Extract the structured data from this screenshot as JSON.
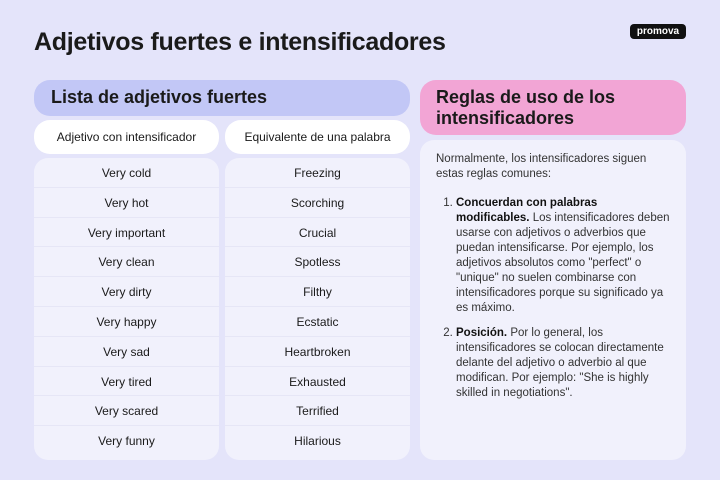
{
  "title": "Adjetivos fuertes e intensificadores",
  "logo": "promova",
  "left": {
    "header": "Lista de adjetivos fuertes",
    "columns": [
      "Adjetivo con intensificador",
      "Equivalente de una palabra"
    ],
    "rows": [
      [
        "Very cold",
        "Freezing"
      ],
      [
        "Very hot",
        "Scorching"
      ],
      [
        "Very important",
        "Crucial"
      ],
      [
        "Very clean",
        "Spotless"
      ],
      [
        "Very dirty",
        "Filthy"
      ],
      [
        "Very happy",
        "Ecstatic"
      ],
      [
        "Very sad",
        "Heartbroken"
      ],
      [
        "Very tired",
        "Exhausted"
      ],
      [
        "Very scared",
        "Terrified"
      ],
      [
        "Very funny",
        "Hilarious"
      ]
    ]
  },
  "right": {
    "header": "Reglas de uso de los intensificadores",
    "intro": "Normalmente, los intensificadores siguen estas reglas comunes:",
    "rules": [
      {
        "bold": "Concuerdan con palabras modificables.",
        "text": " Los intensificadores deben usarse con adjetivos o adverbios que puedan intensificarse. Por ejemplo, los adjetivos absolutos como \"perfect\" o \"unique\" no suelen combinarse con intensificadores porque su significado ya es máximo."
      },
      {
        "bold": "Posición.",
        "text": " Por lo general, los intensificadores se colocan directamente delante del adjetivo o adverbio al que modifican. Por ejemplo: \"She is highly skilled in negotiations\"."
      }
    ]
  },
  "colors": {
    "background": "#e4e4fa",
    "left_header": "#c2c7f6",
    "right_header": "#f2a5d5"
  }
}
